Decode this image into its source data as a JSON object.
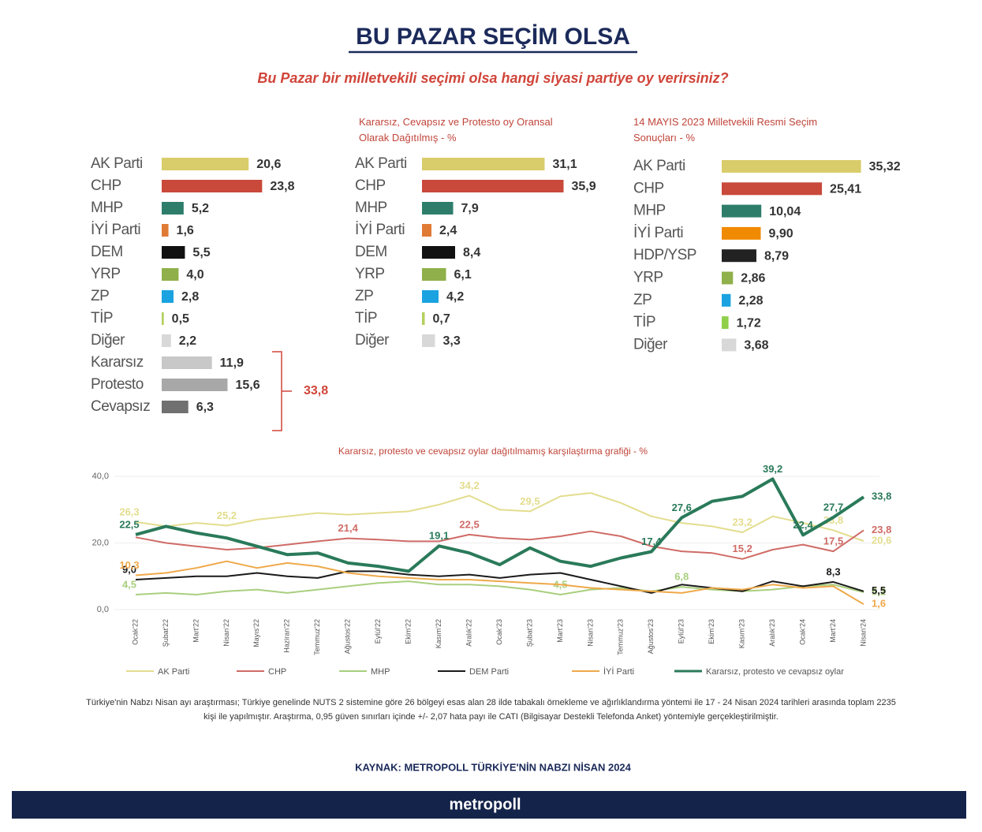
{
  "header": {
    "title": "BU PAZAR SEÇİM OLSA",
    "subtitle": "Bu Pazar bir milletvekili seçimi olsa hangi siyasi partiye oy verirsiniz?"
  },
  "chart_data": [
    {
      "type": "bar",
      "orientation": "horizontal",
      "categories": [
        "AK Parti",
        "CHP",
        "MHP",
        "İYİ Parti",
        "DEM",
        "YRP",
        "ZP",
        "TİP",
        "Diğer",
        "Kararsız",
        "Protesto",
        "Cevapsız"
      ],
      "values": [
        20.6,
        23.8,
        5.2,
        1.6,
        5.5,
        4.0,
        2.8,
        0.5,
        2.2,
        11.9,
        15.6,
        6.3
      ],
      "value_labels": [
        "20,6",
        "23,8",
        "5,2",
        "1,6",
        "5,5",
        "4,0",
        "2,8",
        "0,5",
        "2,2",
        "11,9",
        "15,6",
        "6,3"
      ],
      "colors": [
        "#d9cc6a",
        "#c9493b",
        "#2e7d6b",
        "#e07b35",
        "#111111",
        "#8fb04a",
        "#1aa3e0",
        "#b5cf5e",
        "#d8d8d8",
        "#c8c8c8",
        "#a8a8a8",
        "#707070"
      ],
      "bracket": {
        "value": 33.8,
        "label": "33,8"
      }
    },
    {
      "type": "bar",
      "orientation": "horizontal",
      "title": "Kararsız, Cevapsız ve Protesto oy Oransal Olarak Dağıtılmış - %",
      "categories": [
        "AK Parti",
        "CHP",
        "MHP",
        "İYİ Parti",
        "DEM",
        "YRP",
        "ZP",
        "TİP",
        "Diğer"
      ],
      "values": [
        31.1,
        35.9,
        7.9,
        2.4,
        8.4,
        6.1,
        4.2,
        0.7,
        3.3
      ],
      "value_labels": [
        "31,1",
        "35,9",
        "7,9",
        "2,4",
        "8,4",
        "6,1",
        "4,2",
        "0,7",
        "3,3"
      ],
      "colors": [
        "#d9cc6a",
        "#c9493b",
        "#2e7d6b",
        "#e07b35",
        "#111111",
        "#8fb04a",
        "#1aa3e0",
        "#b5cf5e",
        "#d8d8d8"
      ]
    },
    {
      "type": "bar",
      "orientation": "horizontal",
      "title": "14 MAYIS 2023 Milletvekili Resmi Seçim Sonuçları - %",
      "categories": [
        "AK Parti",
        "CHP",
        "MHP",
        "İYİ Parti",
        "HDP/YSP",
        "YRP",
        "ZP",
        "TİP",
        "Diğer"
      ],
      "values": [
        35.32,
        25.41,
        10.04,
        9.9,
        8.79,
        2.86,
        2.28,
        1.72,
        3.68
      ],
      "value_labels": [
        "35,32",
        "25,41",
        "10,04",
        "9,90",
        "8,79",
        "2,86",
        "2,28",
        "1,72",
        "3,68"
      ],
      "colors": [
        "#d9cc6a",
        "#c9493b",
        "#2e7d6b",
        "#f08a00",
        "#222222",
        "#8fb04a",
        "#1aa3e0",
        "#8fcf4a",
        "#d8d8d8"
      ]
    },
    {
      "type": "line",
      "title": "Kararsız, protesto ve cevapsız oylar dağıtılmamış karşılaştırma grafiği - %",
      "categories": [
        "Ocak'22",
        "Şubat'22",
        "Mart'22",
        "Nisan'22",
        "Mayıs'22",
        "Haziran'22",
        "Temmuz'22",
        "Ağustos'22",
        "Eylül'22",
        "Ekim'22",
        "Kasım'22",
        "Aralık'22",
        "Ocak'23",
        "Şubat'23",
        "Mart'23",
        "Nisan'23",
        "Temmuz'23",
        "Ağustos'23",
        "Eylül'23",
        "Ekim'23",
        "Kasım'23",
        "Aralık'23",
        "Ocak'24",
        "Mart'24",
        "Nisan'24"
      ],
      "ylim": [
        0,
        40
      ],
      "yticks": [
        {
          "value": 0,
          "label": "0,0"
        },
        {
          "value": 20,
          "label": "20,0"
        },
        {
          "value": 40,
          "label": "40,0"
        }
      ],
      "grid": true,
      "series": [
        {
          "name": "AK Parti",
          "color": "#e3dd8e",
          "values": [
            26.3,
            25,
            26,
            25.2,
            27,
            28,
            29,
            28.5,
            29,
            29.5,
            31.5,
            34.2,
            30,
            29.5,
            34,
            35,
            32,
            28,
            26,
            25,
            23.2,
            28,
            26,
            23.8,
            20.6
          ],
          "value_labels": [
            "26,3",
            null,
            null,
            "25,2",
            null,
            null,
            null,
            null,
            null,
            null,
            null,
            "34,2",
            null,
            "29,5",
            null,
            null,
            null,
            null,
            null,
            null,
            "23,2",
            null,
            null,
            "23,8",
            "20,6"
          ]
        },
        {
          "name": "CHP",
          "color": "#cf6b66",
          "values": [
            21.7,
            20,
            19,
            18,
            18.5,
            19.5,
            20.5,
            21.4,
            21,
            20.5,
            20.5,
            22.5,
            21.5,
            21,
            22,
            23.5,
            22,
            19,
            17.5,
            17,
            15.2,
            18,
            19.5,
            17.5,
            23.8
          ],
          "value_labels": [
            null,
            null,
            null,
            null,
            null,
            null,
            null,
            "21,4",
            null,
            null,
            null,
            "22,5",
            null,
            null,
            null,
            null,
            null,
            null,
            null,
            null,
            "15,2",
            null,
            null,
            "17,5",
            "23,8"
          ]
        },
        {
          "name": "MHP",
          "color": "#a9cf7e",
          "values": [
            4.5,
            5,
            4.5,
            5.5,
            6,
            5,
            6,
            7,
            8,
            8.5,
            7.5,
            7.5,
            7,
            6,
            4.5,
            6,
            6.5,
            5.5,
            6.8,
            6,
            5.5,
            6,
            7,
            7.5,
            5.2
          ],
          "value_labels": [
            "4,5",
            null,
            null,
            null,
            null,
            null,
            null,
            null,
            null,
            null,
            null,
            null,
            null,
            null,
            "4,5",
            null,
            null,
            null,
            "6,8",
            null,
            null,
            null,
            null,
            null,
            "5,2"
          ]
        },
        {
          "name": "DEM Parti",
          "color": "#1a1a1a",
          "values": [
            9.0,
            9.5,
            10,
            10,
            11,
            10,
            9.5,
            11.5,
            11.5,
            10.5,
            10,
            10.5,
            9.5,
            10.5,
            11,
            9,
            7,
            5,
            7.5,
            6.5,
            5.5,
            8.5,
            7,
            8.3,
            5.5
          ],
          "value_labels": [
            "9,0",
            null,
            null,
            null,
            null,
            null,
            null,
            null,
            null,
            null,
            null,
            null,
            null,
            null,
            null,
            null,
            null,
            null,
            null,
            null,
            null,
            null,
            null,
            "8,3",
            "5,5"
          ]
        },
        {
          "name": "İYİ Parti",
          "color": "#efa94a",
          "values": [
            10.3,
            11,
            12.5,
            14.5,
            12.5,
            14,
            13,
            11,
            10,
            9.5,
            9,
            9,
            8.5,
            8,
            7.5,
            6.5,
            6,
            5.5,
            5,
            6.5,
            6,
            7.5,
            6.5,
            7,
            1.6
          ],
          "value_labels": [
            "10,3",
            null,
            null,
            null,
            null,
            null,
            null,
            null,
            null,
            null,
            null,
            null,
            null,
            null,
            null,
            null,
            null,
            null,
            null,
            null,
            null,
            null,
            null,
            null,
            "1,6"
          ]
        },
        {
          "name": "Kararsız, protesto ve cevapsız oylar",
          "color": "#2a7a5a",
          "values": [
            22.5,
            25,
            23,
            21.5,
            19,
            16.5,
            17,
            14,
            13,
            11.5,
            19.1,
            17,
            13.5,
            18.5,
            14.5,
            13,
            15.5,
            17.4,
            27.6,
            32.5,
            34,
            39.2,
            22.4,
            27.7,
            33.8
          ],
          "value_labels": [
            "22,5",
            null,
            null,
            null,
            null,
            null,
            null,
            null,
            null,
            null,
            "19,1",
            null,
            null,
            null,
            null,
            null,
            null,
            "17,4",
            "27,6",
            null,
            null,
            "39,2",
            "22,4",
            "27,7",
            "33,8"
          ]
        }
      ]
    }
  ],
  "footnote": "Türkiye'nin Nabzı Nisan ayı araştırması; Türkiye genelinde NUTS 2 sistemine göre 26 bölgeyi esas alan 28 ilde tabakalı örnekleme ve ağırlıklandırma yöntemi ile 17 - 24 Nisan 2024 tarihleri arasında toplam 2235 kişi ile yapılmıştır. Araştırma, 0,95 güven sınırları içinde +/- 2,07 hata payı ile CATI (Bilgisayar Destekli Telefonda Anket) yöntemiyle gerçekleştirilmiştir.",
  "source": "KAYNAK: METROPOLL TÜRKİYE'NİN NABZI NİSAN 2024",
  "footer": {
    "brand": "metropoll"
  }
}
